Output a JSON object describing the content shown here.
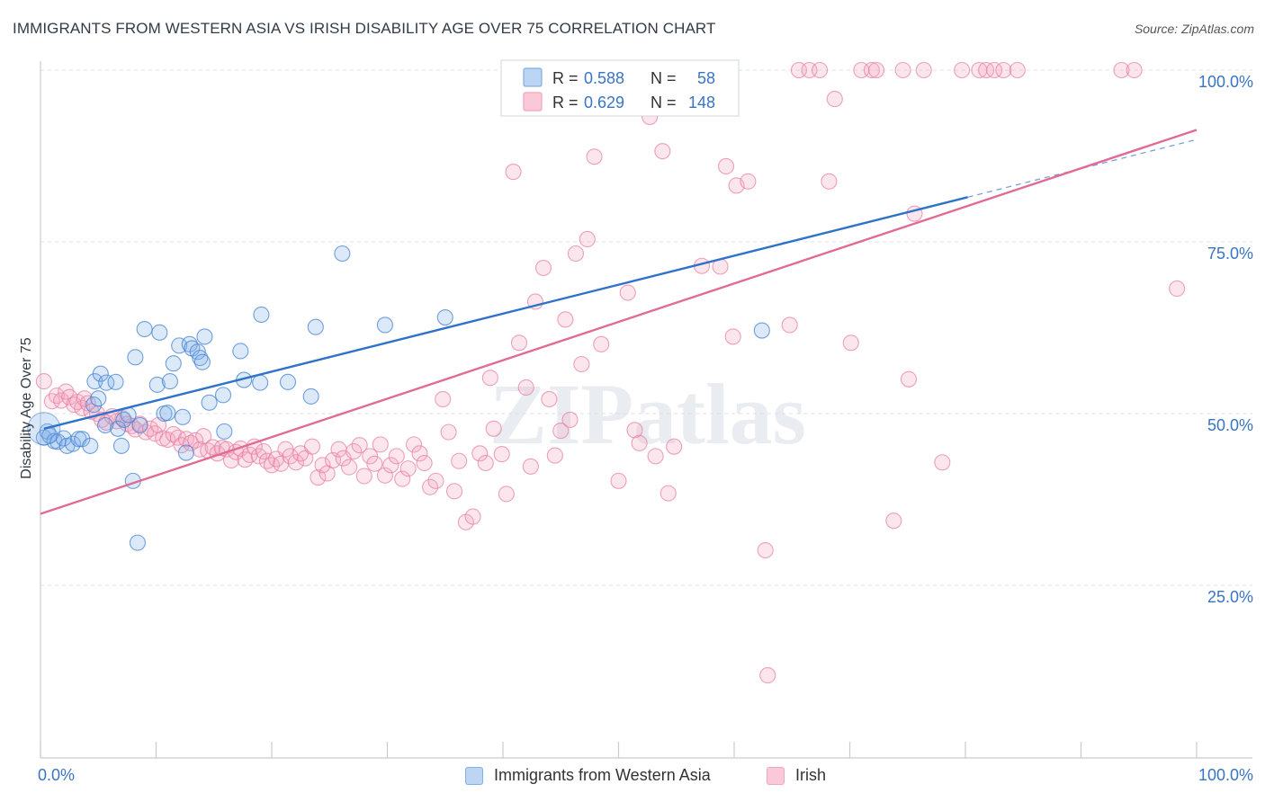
{
  "header": {
    "title": "IMMIGRANTS FROM WESTERN ASIA VS IRISH DISABILITY AGE OVER 75 CORRELATION CHART",
    "source": "Source: ZipAtlas.com"
  },
  "watermark": "ZIPatlas",
  "colors": {
    "blue": "#7fb0e8",
    "blue_line": "#2f73c9",
    "pink": "#f3a5bf",
    "pink_line": "#e06b96",
    "tick_label": "#3a74c4"
  },
  "legend": {
    "rows": [
      {
        "r_label": "R =",
        "r_value": "0.588",
        "n_label": "N =",
        "n_value": "58"
      },
      {
        "r_label": "R =",
        "r_value": "0.629",
        "n_label": "N =",
        "n_value": "148"
      }
    ]
  },
  "bottom_legend": {
    "blue_label": "Immigrants from Western Asia",
    "pink_label": "Irish"
  },
  "chart_data": {
    "type": "scatter",
    "title": "IMMIGRANTS FROM WESTERN ASIA VS IRISH DISABILITY AGE OVER 75 CORRELATION CHART",
    "ylabel": "Disability Age Over 75",
    "xlabel": "",
    "xlim": [
      0,
      100
    ],
    "ylim": [
      0,
      102
    ],
    "x_tick_labels": [
      "0.0%",
      "100.0%"
    ],
    "y_ticks": [
      25,
      50,
      75,
      100
    ],
    "y_tick_labels": [
      "25.0%",
      "50.0%",
      "75.0%",
      "100.0%"
    ],
    "grid": true,
    "legend_position": "top-center",
    "series": [
      {
        "name": "Immigrants from Western Asia",
        "color": "#7fb0e8",
        "R": 0.588,
        "N": 58,
        "trend": {
          "x0": 0.3,
          "y0": 47.8,
          "x1": 80.2,
          "y1": 81.5,
          "dashed_to_x": 100,
          "dashed_to_y": 89.9
        },
        "points": [
          [
            0.3,
            46.5
          ],
          [
            0.6,
            47.4
          ],
          [
            0.8,
            46.8
          ],
          [
            1.2,
            46.0
          ],
          [
            1.5,
            45.9
          ],
          [
            2.0,
            46.4
          ],
          [
            2.3,
            45.3
          ],
          [
            2.8,
            45.6
          ],
          [
            3.3,
            46.3
          ],
          [
            3.6,
            46.3
          ],
          [
            4.3,
            45.3
          ],
          [
            4.6,
            51.3
          ],
          [
            4.7,
            54.7
          ],
          [
            5.0,
            52.2
          ],
          [
            5.2,
            55.8
          ],
          [
            5.6,
            48.3
          ],
          [
            5.7,
            54.5
          ],
          [
            6.5,
            54.6
          ],
          [
            6.7,
            47.8
          ],
          [
            7.0,
            45.3
          ],
          [
            7.2,
            49.1
          ],
          [
            7.6,
            49.8
          ],
          [
            8.0,
            40.2
          ],
          [
            8.2,
            58.2
          ],
          [
            8.4,
            31.2
          ],
          [
            8.6,
            48.3
          ],
          [
            9.0,
            62.3
          ],
          [
            10.1,
            54.2
          ],
          [
            10.3,
            61.8
          ],
          [
            10.7,
            50.0
          ],
          [
            11.0,
            50.1
          ],
          [
            11.2,
            54.7
          ],
          [
            11.5,
            57.3
          ],
          [
            12.0,
            59.9
          ],
          [
            12.3,
            49.5
          ],
          [
            12.6,
            44.3
          ],
          [
            12.9,
            60.1
          ],
          [
            13.1,
            59.5
          ],
          [
            13.6,
            59.0
          ],
          [
            13.8,
            58.1
          ],
          [
            14.0,
            57.5
          ],
          [
            14.2,
            61.2
          ],
          [
            14.6,
            51.6
          ],
          [
            15.8,
            52.7
          ],
          [
            15.9,
            47.4
          ],
          [
            17.3,
            59.1
          ],
          [
            17.6,
            54.9
          ],
          [
            19.0,
            54.5
          ],
          [
            19.1,
            64.4
          ],
          [
            21.4,
            54.6
          ],
          [
            23.4,
            52.5
          ],
          [
            23.8,
            62.6
          ],
          [
            26.1,
            73.3
          ],
          [
            29.8,
            62.9
          ],
          [
            35.0,
            64.0
          ],
          [
            62.4,
            62.1
          ]
        ]
      },
      {
        "name": "Irish",
        "color": "#f3a5bf",
        "R": 0.629,
        "N": 148,
        "trend": {
          "x0": 0.0,
          "y0": 35.4,
          "x1": 100.0,
          "y1": 91.3
        },
        "points": [
          [
            0.3,
            54.7
          ],
          [
            1.0,
            51.8
          ],
          [
            1.4,
            52.6
          ],
          [
            1.8,
            51.9
          ],
          [
            2.2,
            53.2
          ],
          [
            2.5,
            52.4
          ],
          [
            2.9,
            51.3
          ],
          [
            3.2,
            51.7
          ],
          [
            3.6,
            50.8
          ],
          [
            3.8,
            52.2
          ],
          [
            4.1,
            51.5
          ],
          [
            4.4,
            50.3
          ],
          [
            4.9,
            50.0
          ],
          [
            5.3,
            49.1
          ],
          [
            5.7,
            48.7
          ],
          [
            6.2,
            49.6
          ],
          [
            6.6,
            48.9
          ],
          [
            7.1,
            49.3
          ],
          [
            7.5,
            48.5
          ],
          [
            7.9,
            48.2
          ],
          [
            8.2,
            47.7
          ],
          [
            8.6,
            48.5
          ],
          [
            9.1,
            47.3
          ],
          [
            9.5,
            47.8
          ],
          [
            9.9,
            47.1
          ],
          [
            10.2,
            48.3
          ],
          [
            10.6,
            46.4
          ],
          [
            11.0,
            46.2
          ],
          [
            11.5,
            47.0
          ],
          [
            11.9,
            46.5
          ],
          [
            12.2,
            45.4
          ],
          [
            12.6,
            46.3
          ],
          [
            13.0,
            45.7
          ],
          [
            13.4,
            46.1
          ],
          [
            13.8,
            44.8
          ],
          [
            14.1,
            46.7
          ],
          [
            14.5,
            44.6
          ],
          [
            14.9,
            45.1
          ],
          [
            15.3,
            44.2
          ],
          [
            15.7,
            45.0
          ],
          [
            16.1,
            44.8
          ],
          [
            16.5,
            43.2
          ],
          [
            16.9,
            44.4
          ],
          [
            17.3,
            44.9
          ],
          [
            17.7,
            43.3
          ],
          [
            18.1,
            44.0
          ],
          [
            18.5,
            45.2
          ],
          [
            18.9,
            43.8
          ],
          [
            19.3,
            44.5
          ],
          [
            19.6,
            43.1
          ],
          [
            20.0,
            42.5
          ],
          [
            20.4,
            43.4
          ],
          [
            20.8,
            42.7
          ],
          [
            21.2,
            44.8
          ],
          [
            21.6,
            43.8
          ],
          [
            22.1,
            42.9
          ],
          [
            22.5,
            44.2
          ],
          [
            22.9,
            43.5
          ],
          [
            23.5,
            45.2
          ],
          [
            24.0,
            40.7
          ],
          [
            24.4,
            42.5
          ],
          [
            24.8,
            41.3
          ],
          [
            25.3,
            43.2
          ],
          [
            25.8,
            44.8
          ],
          [
            26.2,
            43.5
          ],
          [
            26.7,
            42.2
          ],
          [
            27.1,
            44.5
          ],
          [
            27.6,
            45.4
          ],
          [
            28.0,
            40.9
          ],
          [
            28.5,
            43.8
          ],
          [
            28.9,
            42.7
          ],
          [
            29.4,
            45.5
          ],
          [
            29.8,
            41.0
          ],
          [
            30.3,
            42.5
          ],
          [
            30.8,
            43.8
          ],
          [
            31.3,
            40.5
          ],
          [
            31.8,
            42.0
          ],
          [
            32.3,
            45.5
          ],
          [
            32.8,
            44.2
          ],
          [
            33.2,
            42.8
          ],
          [
            33.7,
            39.3
          ],
          [
            34.2,
            40.2
          ],
          [
            34.8,
            52.1
          ],
          [
            35.3,
            47.3
          ],
          [
            35.8,
            38.7
          ],
          [
            36.2,
            43.1
          ],
          [
            36.8,
            34.2
          ],
          [
            37.4,
            35.0
          ],
          [
            38.0,
            44.2
          ],
          [
            38.5,
            42.8
          ],
          [
            38.9,
            55.2
          ],
          [
            39.2,
            47.8
          ],
          [
            39.9,
            44.1
          ],
          [
            40.3,
            38.3
          ],
          [
            40.9,
            85.2
          ],
          [
            41.4,
            60.3
          ],
          [
            42.0,
            53.8
          ],
          [
            42.4,
            42.3
          ],
          [
            42.8,
            66.3
          ],
          [
            43.5,
            71.2
          ],
          [
            44.0,
            52.1
          ],
          [
            44.5,
            43.9
          ],
          [
            45.0,
            47.5
          ],
          [
            45.4,
            63.7
          ],
          [
            45.8,
            49.1
          ],
          [
            46.3,
            73.3
          ],
          [
            46.8,
            57.2
          ],
          [
            47.3,
            75.4
          ],
          [
            47.9,
            87.4
          ],
          [
            48.5,
            60.1
          ],
          [
            49.2,
            99.2
          ],
          [
            50.0,
            40.2
          ],
          [
            50.8,
            67.6
          ],
          [
            51.4,
            47.6
          ],
          [
            51.8,
            45.7
          ],
          [
            52.3,
            100.0
          ],
          [
            52.7,
            93.2
          ],
          [
            53.2,
            43.8
          ],
          [
            53.8,
            88.2
          ],
          [
            54.3,
            38.4
          ],
          [
            54.8,
            45.2
          ],
          [
            55.3,
            100.0
          ],
          [
            57.2,
            71.5
          ],
          [
            58.1,
            100.0
          ],
          [
            58.8,
            71.4
          ],
          [
            59.3,
            86.0
          ],
          [
            59.9,
            61.2
          ],
          [
            60.2,
            83.2
          ],
          [
            61.2,
            83.8
          ],
          [
            62.7,
            30.1
          ],
          [
            62.9,
            11.9
          ],
          [
            64.8,
            62.9
          ],
          [
            65.6,
            100.0
          ],
          [
            66.5,
            100.0
          ],
          [
            67.4,
            100.0
          ],
          [
            68.2,
            83.8
          ],
          [
            68.7,
            95.8
          ],
          [
            70.1,
            60.3
          ],
          [
            71.0,
            100.0
          ],
          [
            71.9,
            100.0
          ],
          [
            72.3,
            100.0
          ],
          [
            73.8,
            34.4
          ],
          [
            74.6,
            100.0
          ],
          [
            75.1,
            55.0
          ],
          [
            75.6,
            79.1
          ],
          [
            76.4,
            100.0
          ],
          [
            78.0,
            42.9
          ],
          [
            79.7,
            100.0
          ],
          [
            81.2,
            100.0
          ],
          [
            81.8,
            100.0
          ],
          [
            82.5,
            100.0
          ],
          [
            83.3,
            100.0
          ],
          [
            84.5,
            100.0
          ],
          [
            93.5,
            100.0
          ],
          [
            94.6,
            100.0
          ],
          [
            98.3,
            68.2
          ]
        ]
      }
    ]
  }
}
